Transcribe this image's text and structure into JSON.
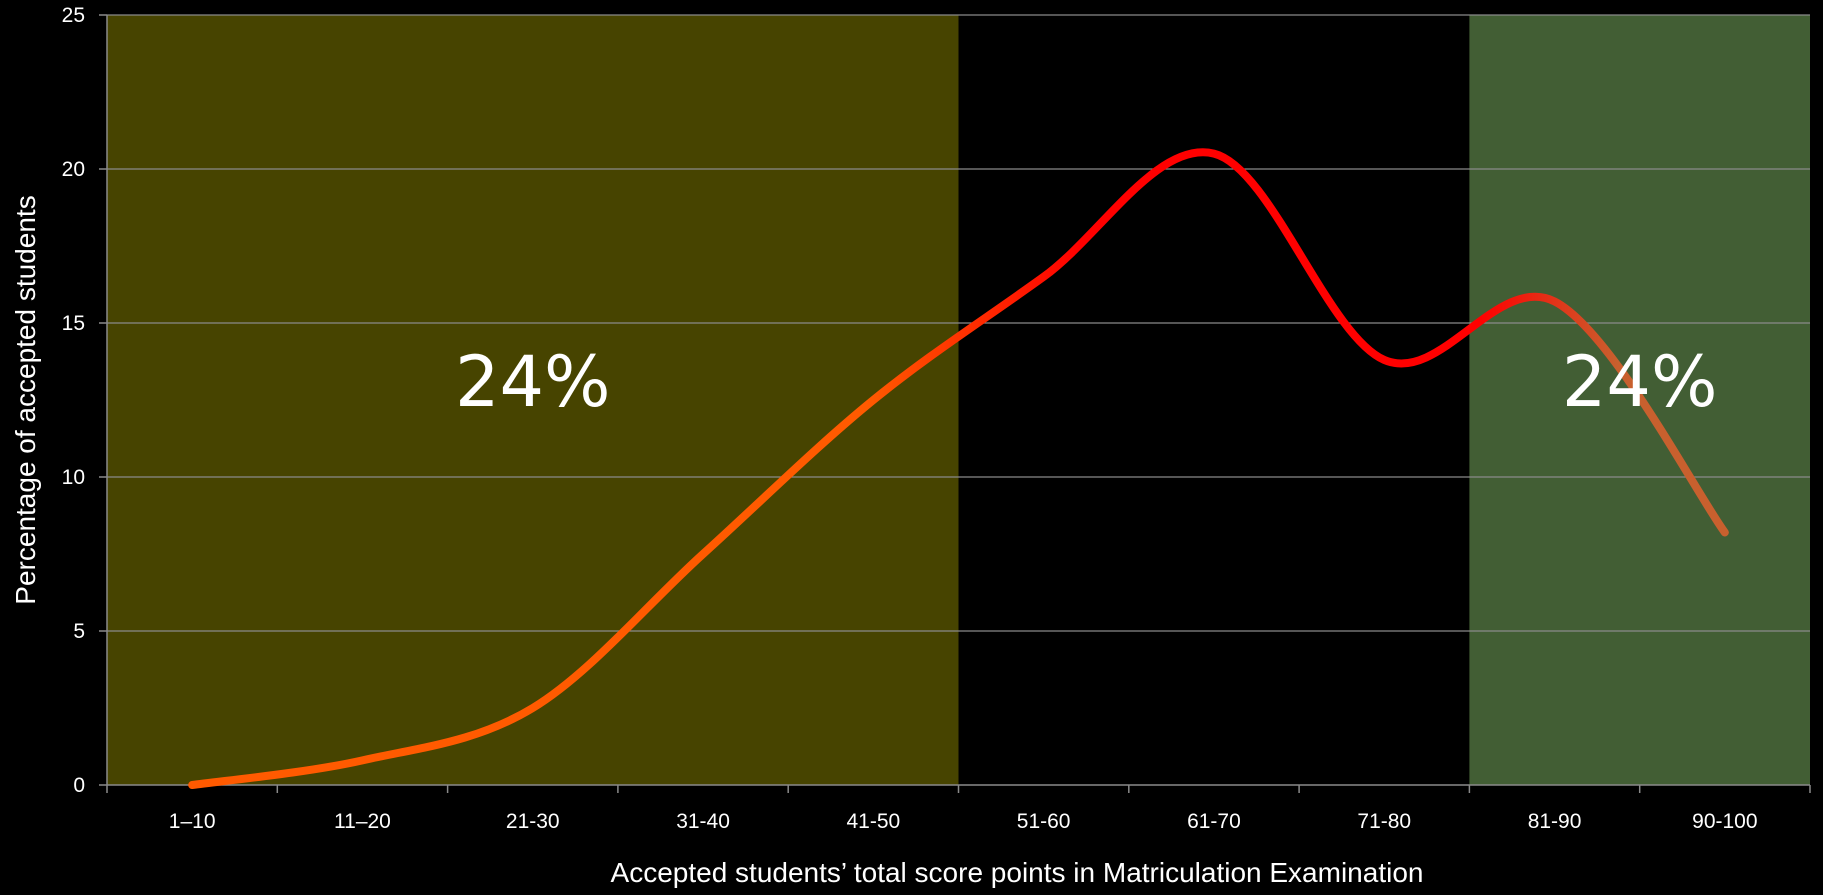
{
  "chart_data": {
    "type": "line",
    "title": "",
    "xlabel": "Accepted students’ total score points in Matriculation Examination",
    "ylabel": "Percentage of accepted students",
    "categories": [
      "1–10",
      "11–20",
      "21-30",
      "31-40",
      "41-50",
      "51-60",
      "61-70",
      "71-80",
      "81-90",
      "90-100"
    ],
    "values": [
      0,
      0.8,
      2.5,
      7.5,
      12.5,
      16.5,
      20.5,
      13.8,
      15.7,
      8.2
    ],
    "ylim": [
      0,
      25
    ],
    "yticks": [
      0,
      5,
      10,
      15,
      20,
      25
    ],
    "grid": true,
    "regions": [
      {
        "from_category": "1–10",
        "to_category": "41-50",
        "label": "24%",
        "color": "#474400"
      },
      {
        "from_category": "81-90",
        "to_category": "90-100",
        "label": "24%",
        "color": "#425e34"
      }
    ],
    "line_colors": {
      "start": "#ff5a00",
      "mid": "#ff0000",
      "end": "#c8602e"
    }
  }
}
